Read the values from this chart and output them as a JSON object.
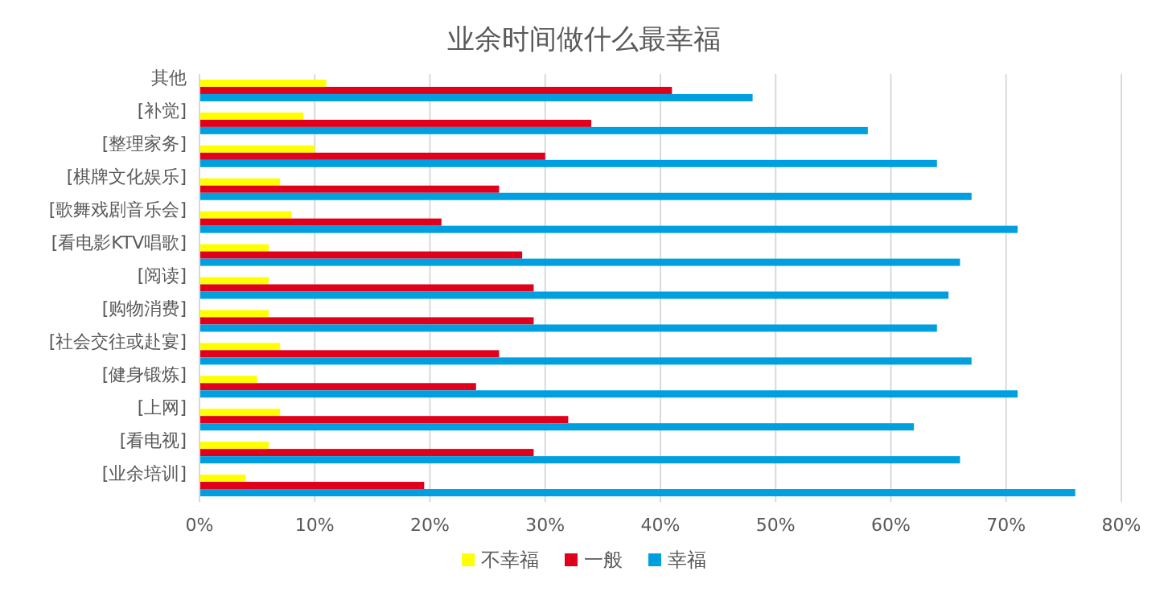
{
  "chart_data": {
    "type": "bar",
    "orientation": "horizontal",
    "title": "业余时间做什么最幸福",
    "categories": [
      "其他",
      "[补觉]",
      "[整理家务]",
      "[棋牌文化娱乐]",
      "[歌舞戏剧音乐会]",
      "[看电影KTV唱歌]",
      "[阅读]",
      "[购物消费]",
      "[社会交往或赴宴]",
      "[健身锻炼]",
      "[上网]",
      "[看电视]",
      "[业余培训]"
    ],
    "series": [
      {
        "name": "不幸福",
        "color": "#ffff00",
        "values": [
          11,
          9,
          10,
          7,
          8,
          6,
          6,
          6,
          7,
          5,
          7,
          6,
          4
        ]
      },
      {
        "name": "一般",
        "color": "#e0001b",
        "values": [
          41,
          34,
          30,
          26,
          21,
          28,
          29,
          29,
          26,
          24,
          32,
          29,
          19.5
        ]
      },
      {
        "name": "幸福",
        "color": "#00a0e0",
        "values": [
          48,
          58,
          64,
          67,
          71,
          66,
          65,
          64,
          67,
          71,
          62,
          66,
          76
        ]
      }
    ],
    "xlim": [
      0,
      80
    ],
    "xticks": [
      {
        "value": 0,
        "label": "0%"
      },
      {
        "value": 10,
        "label": "10%"
      },
      {
        "value": 20,
        "label": "20%"
      },
      {
        "value": 30,
        "label": "30%"
      },
      {
        "value": 40,
        "label": "40%"
      },
      {
        "value": 50,
        "label": "50%"
      },
      {
        "value": 60,
        "label": "60%"
      },
      {
        "value": 70,
        "label": "70%"
      },
      {
        "value": 80,
        "label": "80%"
      }
    ],
    "grid": "x",
    "legend": "bottom"
  }
}
